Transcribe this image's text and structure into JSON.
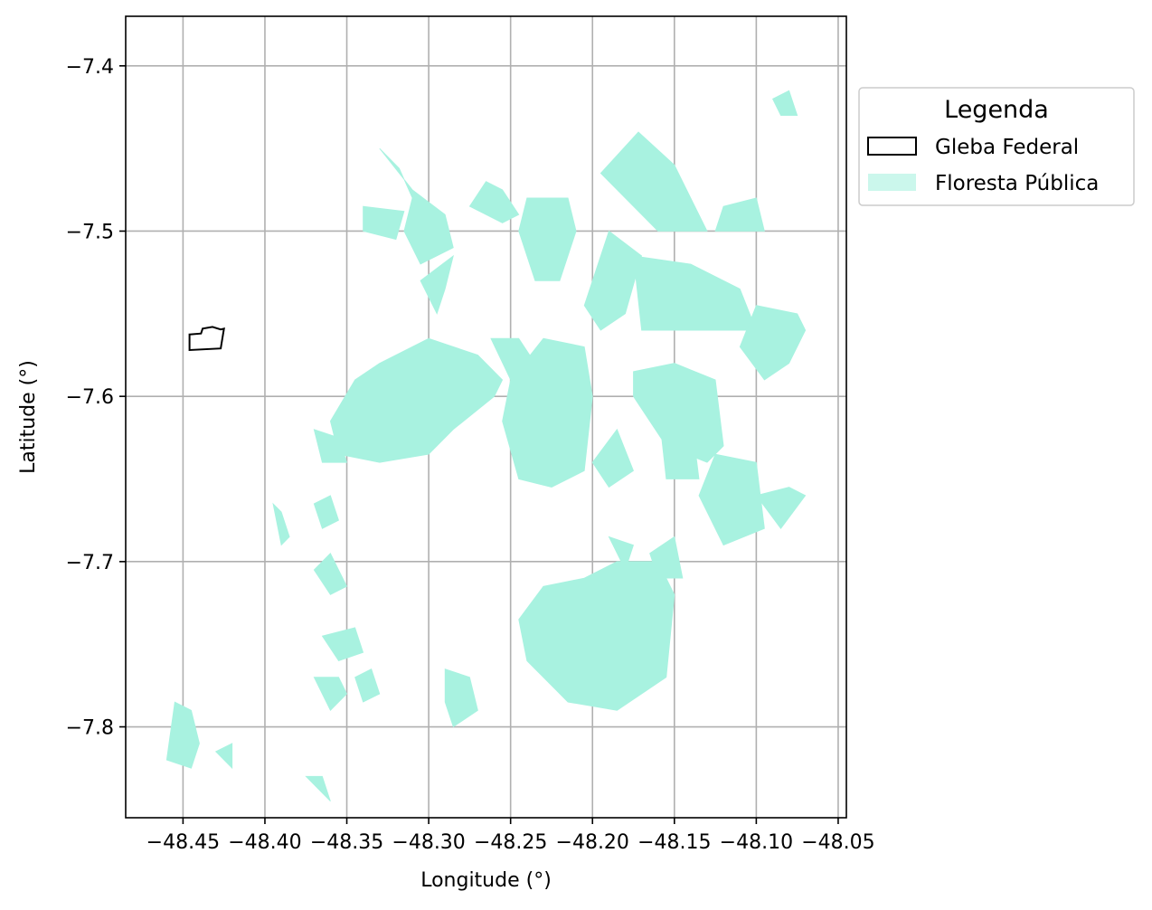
{
  "chart_data": {
    "type": "map",
    "xlabel": "Longitude (°)",
    "ylabel": "Latitude (°)",
    "xlim": [
      -48.485,
      -48.045
    ],
    "ylim": [
      -7.855,
      -7.37
    ],
    "xticks": [
      -48.45,
      -48.4,
      -48.35,
      -48.3,
      -48.25,
      -48.2,
      -48.15,
      -48.1,
      -48.05
    ],
    "xtick_labels": [
      "−48.45",
      "−48.40",
      "−48.35",
      "−48.30",
      "−48.25",
      "−48.20",
      "−48.15",
      "−48.10",
      "−48.05"
    ],
    "yticks": [
      -7.4,
      -7.5,
      -7.6,
      -7.7,
      -7.8
    ],
    "ytick_labels": [
      "−7.4",
      "−7.5",
      "−7.6",
      "−7.7",
      "−7.8"
    ],
    "grid": true,
    "legend": {
      "title": "Legenda",
      "placement": "outside-top-right",
      "entries": [
        {
          "label": "Gleba Federal",
          "style": "outline",
          "color": "#000000"
        },
        {
          "label": "Floresta Pública",
          "style": "fill",
          "color": "#a8f2e0"
        }
      ]
    },
    "colors": {
      "forest": "#a8f2e0",
      "gleba_edge": "#000000",
      "grid": "#b0b0b0"
    },
    "layers": [
      {
        "name": "Gleba Federal",
        "polygons": [
          [
            [
              -48.446,
              -7.5625
            ],
            [
              -48.439,
              -7.562
            ],
            [
              -48.438,
              -7.559
            ],
            [
              -48.432,
              -7.558
            ],
            [
              -48.427,
              -7.5595
            ],
            [
              -48.425,
              -7.559
            ],
            [
              -48.427,
              -7.571
            ],
            [
              -48.446,
              -7.572
            ]
          ]
        ]
      },
      {
        "name": "Floresta Pública",
        "polygons": [
          [
            [
              -48.33,
              -7.45
            ],
            [
              -48.318,
              -7.462
            ],
            [
              -48.31,
              -7.48
            ],
            [
              -48.315,
              -7.5
            ],
            [
              -48.305,
              -7.52
            ],
            [
              -48.285,
              -7.51
            ],
            [
              -48.29,
              -7.49
            ],
            [
              -48.31,
              -7.475
            ]
          ],
          [
            [
              -48.34,
              -7.485
            ],
            [
              -48.315,
              -7.488
            ],
            [
              -48.32,
              -7.505
            ],
            [
              -48.34,
              -7.5
            ]
          ],
          [
            [
              -48.275,
              -7.485
            ],
            [
              -48.265,
              -7.47
            ],
            [
              -48.255,
              -7.475
            ],
            [
              -48.245,
              -7.49
            ],
            [
              -48.255,
              -7.495
            ]
          ],
          [
            [
              -48.285,
              -7.515
            ],
            [
              -48.29,
              -7.535
            ],
            [
              -48.295,
              -7.55
            ],
            [
              -48.305,
              -7.53
            ]
          ],
          [
            [
              -48.33,
              -7.58
            ],
            [
              -48.3,
              -7.565
            ],
            [
              -48.27,
              -7.575
            ],
            [
              -48.255,
              -7.59
            ],
            [
              -48.26,
              -7.6
            ],
            [
              -48.285,
              -7.62
            ],
            [
              -48.3,
              -7.635
            ],
            [
              -48.33,
              -7.64
            ],
            [
              -48.355,
              -7.635
            ],
            [
              -48.36,
              -7.615
            ],
            [
              -48.345,
              -7.59
            ]
          ],
          [
            [
              -48.262,
              -7.565
            ],
            [
              -48.245,
              -7.565
            ],
            [
              -48.235,
              -7.58
            ],
            [
              -48.25,
              -7.59
            ]
          ],
          [
            [
              -48.24,
              -7.48
            ],
            [
              -48.215,
              -7.48
            ],
            [
              -48.21,
              -7.5
            ],
            [
              -48.22,
              -7.53
            ],
            [
              -48.235,
              -7.53
            ],
            [
              -48.245,
              -7.5
            ]
          ],
          [
            [
              -48.23,
              -7.565
            ],
            [
              -48.205,
              -7.57
            ],
            [
              -48.2,
              -7.6
            ],
            [
              -48.205,
              -7.645
            ],
            [
              -48.225,
              -7.655
            ],
            [
              -48.245,
              -7.65
            ],
            [
              -48.255,
              -7.615
            ],
            [
              -48.25,
              -7.59
            ]
          ],
          [
            [
              -48.2,
              -7.64
            ],
            [
              -48.185,
              -7.62
            ],
            [
              -48.175,
              -7.645
            ],
            [
              -48.19,
              -7.655
            ]
          ],
          [
            [
              -48.195,
              -7.465
            ],
            [
              -48.172,
              -7.44
            ],
            [
              -48.15,
              -7.46
            ],
            [
              -48.13,
              -7.5
            ],
            [
              -48.16,
              -7.5
            ]
          ],
          [
            [
              -48.19,
              -7.5
            ],
            [
              -48.17,
              -7.515
            ],
            [
              -48.18,
              -7.55
            ],
            [
              -48.195,
              -7.56
            ],
            [
              -48.205,
              -7.545
            ]
          ],
          [
            [
              -48.175,
              -7.515
            ],
            [
              -48.14,
              -7.52
            ],
            [
              -48.11,
              -7.535
            ],
            [
              -48.1,
              -7.56
            ],
            [
              -48.14,
              -7.56
            ],
            [
              -48.17,
              -7.56
            ]
          ],
          [
            [
              -48.12,
              -7.485
            ],
            [
              -48.1,
              -7.48
            ],
            [
              -48.095,
              -7.5
            ],
            [
              -48.125,
              -7.5
            ]
          ],
          [
            [
              -48.1,
              -7.545
            ],
            [
              -48.075,
              -7.55
            ],
            [
              -48.07,
              -7.56
            ],
            [
              -48.08,
              -7.58
            ],
            [
              -48.095,
              -7.59
            ],
            [
              -48.11,
              -7.57
            ]
          ],
          [
            [
              -48.175,
              -7.585
            ],
            [
              -48.15,
              -7.58
            ],
            [
              -48.125,
              -7.59
            ],
            [
              -48.12,
              -7.63
            ],
            [
              -48.13,
              -7.64
            ],
            [
              -48.155,
              -7.63
            ],
            [
              -48.175,
              -7.6
            ]
          ],
          [
            [
              -48.16,
              -7.605
            ],
            [
              -48.14,
              -7.61
            ],
            [
              -48.135,
              -7.65
            ],
            [
              -48.155,
              -7.65
            ]
          ],
          [
            [
              -48.125,
              -7.635
            ],
            [
              -48.1,
              -7.64
            ],
            [
              -48.095,
              -7.68
            ],
            [
              -48.12,
              -7.69
            ],
            [
              -48.135,
              -7.66
            ]
          ],
          [
            [
              -48.1,
              -7.66
            ],
            [
              -48.08,
              -7.655
            ],
            [
              -48.07,
              -7.66
            ],
            [
              -48.085,
              -7.68
            ]
          ],
          [
            [
              -48.13,
              -7.665
            ],
            [
              -48.12,
              -7.68
            ],
            [
              -48.11,
              -7.675
            ]
          ],
          [
            [
              -48.205,
              -7.71
            ],
            [
              -48.185,
              -7.7
            ],
            [
              -48.16,
              -7.7
            ],
            [
              -48.15,
              -7.72
            ],
            [
              -48.155,
              -7.77
            ],
            [
              -48.185,
              -7.79
            ],
            [
              -48.215,
              -7.785
            ],
            [
              -48.24,
              -7.76
            ],
            [
              -48.245,
              -7.735
            ],
            [
              -48.23,
              -7.715
            ]
          ],
          [
            [
              -48.165,
              -7.695
            ],
            [
              -48.15,
              -7.685
            ],
            [
              -48.145,
              -7.71
            ],
            [
              -48.16,
              -7.71
            ]
          ],
          [
            [
              -48.19,
              -7.685
            ],
            [
              -48.175,
              -7.69
            ],
            [
              -48.18,
              -7.705
            ]
          ],
          [
            [
              -48.37,
              -7.62
            ],
            [
              -48.355,
              -7.625
            ],
            [
              -48.35,
              -7.64
            ],
            [
              -48.365,
              -7.64
            ]
          ],
          [
            [
              -48.37,
              -7.665
            ],
            [
              -48.36,
              -7.66
            ],
            [
              -48.355,
              -7.675
            ],
            [
              -48.365,
              -7.68
            ]
          ],
          [
            [
              -48.37,
              -7.705
            ],
            [
              -48.36,
              -7.695
            ],
            [
              -48.35,
              -7.715
            ],
            [
              -48.36,
              -7.72
            ]
          ],
          [
            [
              -48.365,
              -7.745
            ],
            [
              -48.345,
              -7.74
            ],
            [
              -48.34,
              -7.755
            ],
            [
              -48.355,
              -7.76
            ]
          ],
          [
            [
              -48.345,
              -7.77
            ],
            [
              -48.335,
              -7.765
            ],
            [
              -48.33,
              -7.78
            ],
            [
              -48.34,
              -7.785
            ]
          ],
          [
            [
              -48.395,
              -7.665
            ],
            [
              -48.39,
              -7.67
            ],
            [
              -48.385,
              -7.685
            ],
            [
              -48.39,
              -7.69
            ]
          ],
          [
            [
              -48.37,
              -7.77
            ],
            [
              -48.355,
              -7.77
            ],
            [
              -48.35,
              -7.78
            ],
            [
              -48.36,
              -7.79
            ]
          ],
          [
            [
              -48.29,
              -7.765
            ],
            [
              -48.275,
              -7.77
            ],
            [
              -48.27,
              -7.79
            ],
            [
              -48.285,
              -7.8
            ],
            [
              -48.29,
              -7.785
            ]
          ],
          [
            [
              -48.455,
              -7.785
            ],
            [
              -48.445,
              -7.79
            ],
            [
              -48.44,
              -7.81
            ],
            [
              -48.445,
              -7.825
            ],
            [
              -48.46,
              -7.82
            ]
          ],
          [
            [
              -48.42,
              -7.81
            ],
            [
              -48.43,
              -7.815
            ],
            [
              -48.42,
              -7.825
            ]
          ],
          [
            [
              -48.375,
              -7.83
            ],
            [
              -48.365,
              -7.83
            ],
            [
              -48.36,
              -7.845
            ]
          ],
          [
            [
              -48.09,
              -7.42
            ],
            [
              -48.08,
              -7.415
            ],
            [
              -48.075,
              -7.43
            ],
            [
              -48.085,
              -7.43
            ]
          ]
        ]
      }
    ]
  }
}
